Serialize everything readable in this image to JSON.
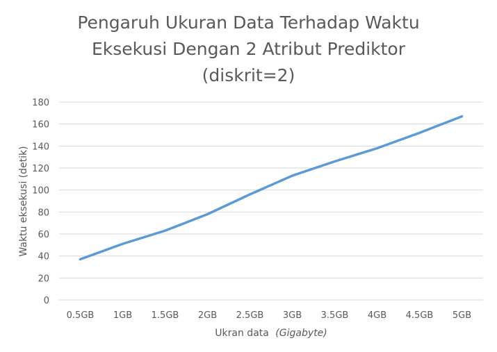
{
  "chart_data": {
    "type": "line",
    "title_lines": [
      "Pengaruh Ukuran Data Terhadap Waktu",
      "Eksekusi Dengan 2 Atribut Prediktor",
      "(diskrit=2)"
    ],
    "xlabel": "Ukran data",
    "xlabel_italic": "(Gigabyte)",
    "ylabel": "Waktu eksekusi (detik)",
    "categories": [
      "0.5GB",
      "1GB",
      "1.5GB",
      "2GB",
      "2.5GB",
      "3GB",
      "3.5GB",
      "4GB",
      "4.5GB",
      "5GB"
    ],
    "series": [
      {
        "values": [
          37,
          51,
          63,
          78,
          96,
          113,
          126,
          138,
          152,
          167
        ]
      }
    ],
    "ylim": [
      0,
      180
    ],
    "yticks": [
      0,
      20,
      40,
      60,
      80,
      100,
      120,
      140,
      160,
      180
    ],
    "grid": "horizontal",
    "legend": "none",
    "colors": {
      "line": "#5B9BD5",
      "grid": "#D9D9D9",
      "text": "#595959"
    }
  }
}
